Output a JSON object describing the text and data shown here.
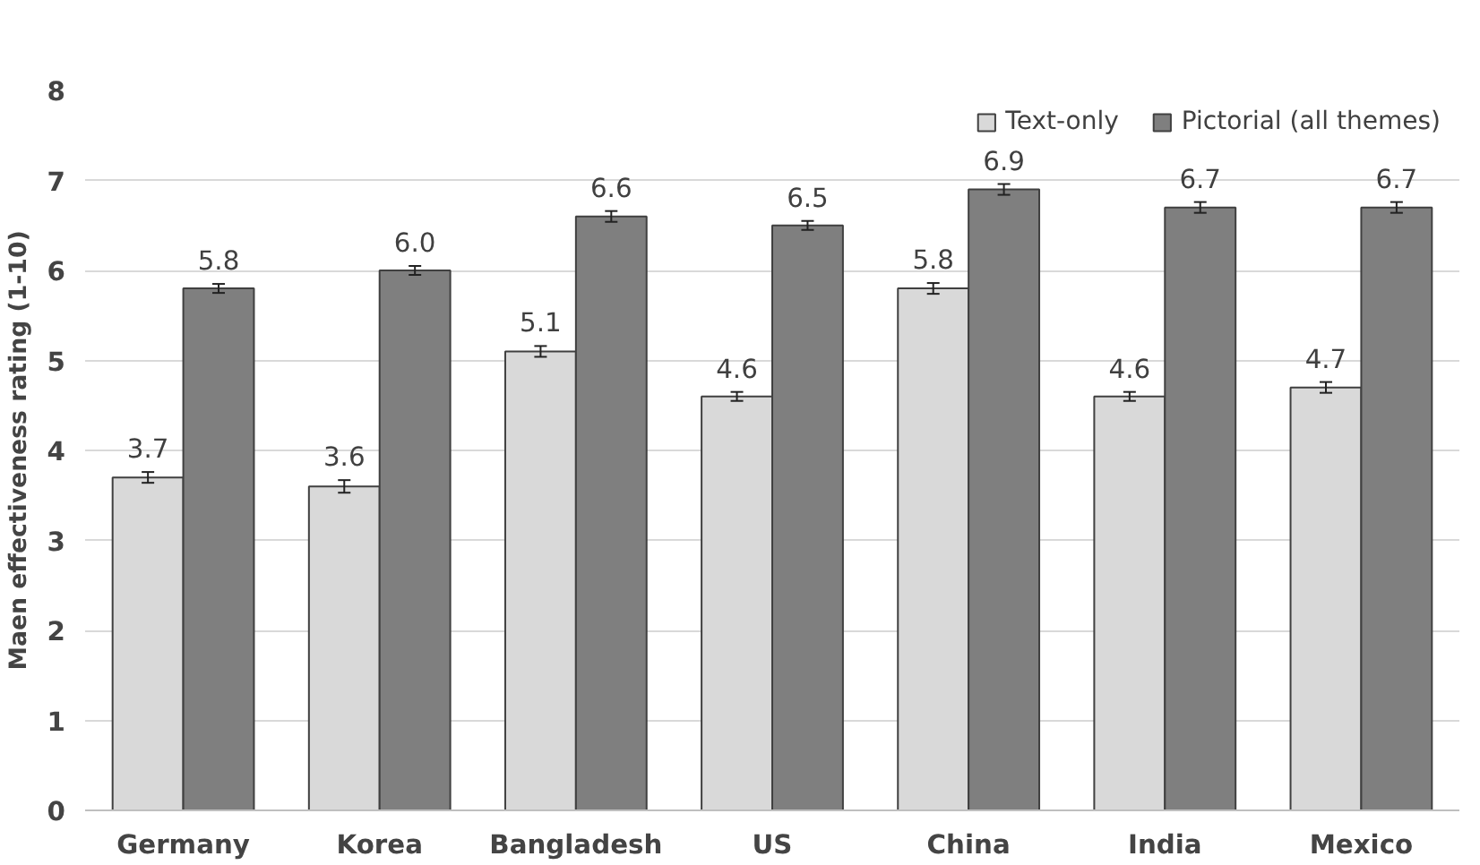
{
  "chart_data": {
    "type": "bar",
    "ylabel": "Maen effectiveness rating (1-10)",
    "categories": [
      "Germany",
      "Korea",
      "Bangladesh",
      "US",
      "China",
      "India",
      "Mexico"
    ],
    "series": [
      {
        "name": "Text-only",
        "color": "#d9d9d9",
        "values": [
          3.7,
          3.6,
          5.1,
          4.6,
          5.8,
          4.6,
          4.7
        ],
        "errors": [
          0.06,
          0.07,
          0.06,
          0.05,
          0.06,
          0.05,
          0.06
        ],
        "value_labels": [
          "3.7",
          "3.6",
          "5.1",
          "4.6",
          "5.8",
          "4.6",
          "4.7"
        ]
      },
      {
        "name": "Pictorial (all themes)",
        "color": "#7f7f7f",
        "values": [
          5.8,
          6.0,
          6.6,
          6.5,
          6.9,
          6.7,
          6.7
        ],
        "errors": [
          0.05,
          0.05,
          0.06,
          0.05,
          0.06,
          0.06,
          0.06
        ],
        "value_labels": [
          "5.8",
          "6.0",
          "6.6",
          "6.5",
          "6.9",
          "6.7",
          "6.7"
        ]
      }
    ],
    "ylim": [
      0,
      8
    ],
    "yticks": [
      0,
      1,
      2,
      3,
      4,
      5,
      6,
      7,
      8
    ],
    "grid": "y",
    "legend": "top right"
  }
}
